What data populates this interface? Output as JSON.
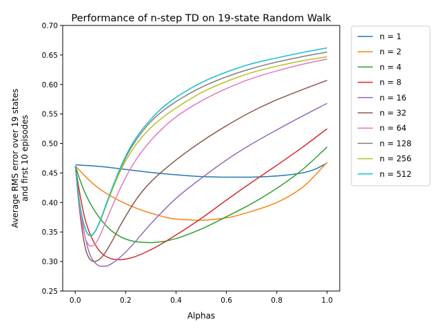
{
  "chart_data": {
    "type": "line",
    "title": "Performance of n-step TD on 19-state Random Walk",
    "xlabel": "Alphas",
    "ylabel_lines": [
      "Average RMS error over 19 states",
      "and first 10 episodes"
    ],
    "xlim": [
      -0.05,
      1.05
    ],
    "ylim": [
      0.25,
      0.7
    ],
    "xticks": [
      0.0,
      0.2,
      0.4,
      0.6,
      0.8,
      1.0
    ],
    "xtick_labels": [
      "0.0",
      "0.2",
      "0.4",
      "0.6",
      "0.8",
      "1.0"
    ],
    "yticks": [
      0.25,
      0.3,
      0.35,
      0.4,
      0.45,
      0.5,
      0.55,
      0.6,
      0.65,
      0.7
    ],
    "ytick_labels": [
      "0.25",
      "0.30",
      "0.35",
      "0.40",
      "0.45",
      "0.50",
      "0.55",
      "0.60",
      "0.65",
      "0.70"
    ],
    "grid": false,
    "legend_position": "outside upper right",
    "series": [
      {
        "name": "n = 1",
        "color": "#1f77b4",
        "x": [
          0.0,
          0.1,
          0.2,
          0.3,
          0.4,
          0.5,
          0.6,
          0.7,
          0.8,
          0.9,
          0.95,
          1.0
        ],
        "y": [
          0.464,
          0.461,
          0.456,
          0.451,
          0.447,
          0.444,
          0.443,
          0.443,
          0.445,
          0.45,
          0.456,
          0.467
        ]
      },
      {
        "name": "n = 2",
        "color": "#ff7f0e",
        "x": [
          0.0,
          0.05,
          0.1,
          0.2,
          0.3,
          0.4,
          0.5,
          0.6,
          0.7,
          0.8,
          0.9,
          1.0
        ],
        "y": [
          0.462,
          0.44,
          0.422,
          0.398,
          0.382,
          0.372,
          0.37,
          0.374,
          0.385,
          0.4,
          0.425,
          0.468
        ]
      },
      {
        "name": "n = 4",
        "color": "#2ca02c",
        "x": [
          0.0,
          0.03,
          0.06,
          0.1,
          0.15,
          0.2,
          0.25,
          0.3,
          0.35,
          0.4,
          0.5,
          0.6,
          0.7,
          0.8,
          0.9,
          1.0
        ],
        "y": [
          0.462,
          0.425,
          0.398,
          0.372,
          0.35,
          0.338,
          0.333,
          0.332,
          0.334,
          0.339,
          0.355,
          0.376,
          0.398,
          0.424,
          0.455,
          0.494
        ]
      },
      {
        "name": "n = 8",
        "color": "#d62728",
        "x": [
          0.0,
          0.02,
          0.04,
          0.06,
          0.08,
          0.1,
          0.12,
          0.15,
          0.18,
          0.22,
          0.3,
          0.4,
          0.5,
          0.6,
          0.7,
          0.8,
          0.9,
          1.0
        ],
        "y": [
          0.462,
          0.41,
          0.37,
          0.345,
          0.328,
          0.316,
          0.309,
          0.304,
          0.303,
          0.306,
          0.32,
          0.345,
          0.373,
          0.404,
          0.434,
          0.463,
          0.493,
          0.525
        ]
      },
      {
        "name": "n = 16",
        "color": "#9467bd",
        "x": [
          0.0,
          0.02,
          0.04,
          0.06,
          0.08,
          0.1,
          0.12,
          0.15,
          0.2,
          0.3,
          0.4,
          0.5,
          0.6,
          0.7,
          0.8,
          0.9,
          1.0
        ],
        "y": [
          0.462,
          0.39,
          0.34,
          0.31,
          0.297,
          0.292,
          0.292,
          0.298,
          0.316,
          0.364,
          0.407,
          0.441,
          0.472,
          0.499,
          0.523,
          0.546,
          0.568
        ]
      },
      {
        "name": "n = 32",
        "color": "#8c564b",
        "x": [
          0.0,
          0.015,
          0.03,
          0.045,
          0.06,
          0.075,
          0.09,
          0.11,
          0.14,
          0.18,
          0.25,
          0.3,
          0.4,
          0.5,
          0.6,
          0.7,
          0.8,
          0.9,
          1.0
        ],
        "y": [
          0.462,
          0.395,
          0.345,
          0.315,
          0.303,
          0.3,
          0.302,
          0.31,
          0.33,
          0.362,
          0.41,
          0.435,
          0.472,
          0.503,
          0.53,
          0.554,
          0.574,
          0.591,
          0.607
        ]
      },
      {
        "name": "n = 64",
        "color": "#e377c2",
        "x": [
          0.0,
          0.015,
          0.03,
          0.045,
          0.06,
          0.075,
          0.09,
          0.11,
          0.14,
          0.18,
          0.22,
          0.26,
          0.3,
          0.35,
          0.4,
          0.5,
          0.6,
          0.7,
          0.8,
          0.9,
          1.0
        ],
        "y": [
          0.462,
          0.4,
          0.358,
          0.334,
          0.326,
          0.328,
          0.337,
          0.356,
          0.387,
          0.425,
          0.458,
          0.484,
          0.505,
          0.527,
          0.545,
          0.572,
          0.593,
          0.61,
          0.623,
          0.634,
          0.643
        ]
      },
      {
        "name": "n = 128",
        "color": "#7f7f7f",
        "x": [
          0.0,
          0.015,
          0.03,
          0.045,
          0.055,
          0.065,
          0.08,
          0.1,
          0.13,
          0.17,
          0.21,
          0.25,
          0.3,
          0.35,
          0.4,
          0.5,
          0.6,
          0.7,
          0.8,
          0.9,
          1.0
        ],
        "y": [
          0.462,
          0.405,
          0.37,
          0.35,
          0.345,
          0.345,
          0.352,
          0.37,
          0.404,
          0.448,
          0.484,
          0.511,
          0.537,
          0.556,
          0.571,
          0.595,
          0.613,
          0.627,
          0.638,
          0.647,
          0.655
        ]
      },
      {
        "name": "n = 256",
        "color": "#bcbd22",
        "x": [
          0.0,
          0.015,
          0.03,
          0.045,
          0.055,
          0.065,
          0.08,
          0.1,
          0.13,
          0.17,
          0.21,
          0.25,
          0.3,
          0.35,
          0.4,
          0.5,
          0.6,
          0.7,
          0.8,
          0.9,
          1.0
        ],
        "y": [
          0.462,
          0.405,
          0.37,
          0.35,
          0.345,
          0.345,
          0.352,
          0.37,
          0.403,
          0.445,
          0.478,
          0.503,
          0.527,
          0.545,
          0.56,
          0.586,
          0.605,
          0.62,
          0.631,
          0.64,
          0.647
        ]
      },
      {
        "name": "n = 512",
        "color": "#17becf",
        "x": [
          0.0,
          0.015,
          0.03,
          0.045,
          0.055,
          0.065,
          0.08,
          0.1,
          0.13,
          0.17,
          0.21,
          0.25,
          0.3,
          0.35,
          0.4,
          0.5,
          0.6,
          0.7,
          0.8,
          0.9,
          1.0
        ],
        "y": [
          0.462,
          0.405,
          0.37,
          0.35,
          0.344,
          0.344,
          0.352,
          0.371,
          0.406,
          0.45,
          0.487,
          0.515,
          0.541,
          0.562,
          0.578,
          0.603,
          0.621,
          0.635,
          0.645,
          0.654,
          0.662
        ]
      }
    ]
  }
}
